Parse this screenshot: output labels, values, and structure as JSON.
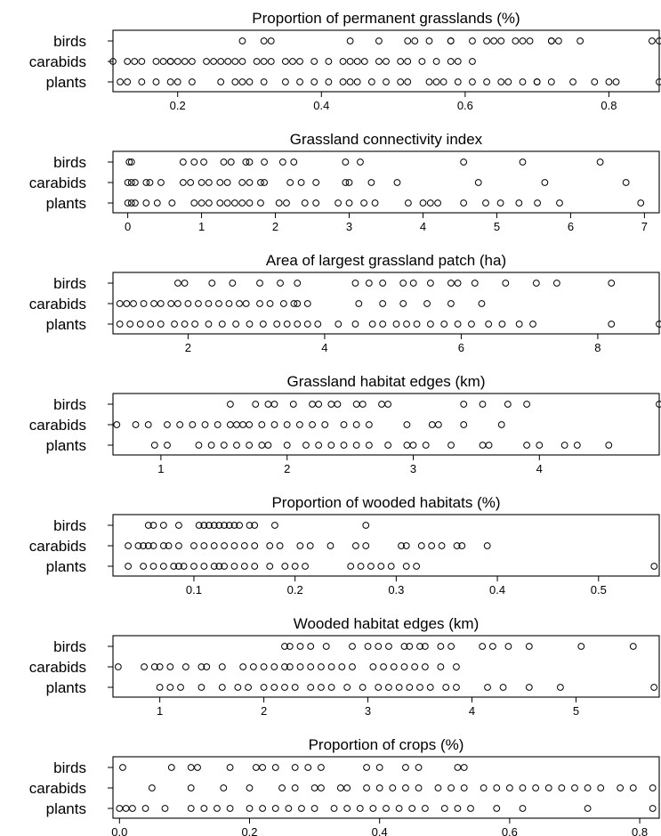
{
  "chart_data": [
    {
      "type": "scatter",
      "title": "Proportion of permanent grasslands (%)",
      "groups": [
        "birds",
        "carabids",
        "plants"
      ],
      "xlim": [
        0.11,
        0.87
      ],
      "ticks": [
        0.2,
        0.4,
        0.6,
        0.8
      ],
      "tick_labels": [
        "0.2",
        "0.4",
        "0.6",
        "0.8"
      ],
      "series": [
        {
          "name": "birds",
          "values": [
            0.29,
            0.32,
            0.33,
            0.44,
            0.48,
            0.52,
            0.53,
            0.55,
            0.58,
            0.58,
            0.61,
            0.63,
            0.64,
            0.65,
            0.67,
            0.68,
            0.69,
            0.72,
            0.72,
            0.73,
            0.76,
            0.86,
            0.87
          ]
        },
        {
          "name": "carabids",
          "values": [
            0.11,
            0.13,
            0.14,
            0.15,
            0.17,
            0.18,
            0.19,
            0.19,
            0.2,
            0.21,
            0.22,
            0.24,
            0.25,
            0.26,
            0.27,
            0.28,
            0.29,
            0.31,
            0.32,
            0.33,
            0.35,
            0.36,
            0.37,
            0.39,
            0.41,
            0.43,
            0.44,
            0.45,
            0.46,
            0.48,
            0.49,
            0.51,
            0.52,
            0.54,
            0.56,
            0.58,
            0.59,
            0.61
          ]
        },
        {
          "name": "plants",
          "values": [
            0.12,
            0.13,
            0.15,
            0.17,
            0.19,
            0.2,
            0.22,
            0.26,
            0.28,
            0.29,
            0.3,
            0.32,
            0.35,
            0.37,
            0.39,
            0.41,
            0.43,
            0.44,
            0.45,
            0.47,
            0.49,
            0.51,
            0.52,
            0.55,
            0.56,
            0.57,
            0.59,
            0.61,
            0.63,
            0.65,
            0.66,
            0.68,
            0.7,
            0.7,
            0.72,
            0.75,
            0.78,
            0.8,
            0.81,
            0.87
          ]
        }
      ]
    },
    {
      "type": "scatter",
      "title": "Grassland connectivity index",
      "groups": [
        "birds",
        "carabids",
        "plants"
      ],
      "xlim": [
        -0.2,
        7.2
      ],
      "ticks": [
        0,
        1,
        2,
        3,
        4,
        5,
        6,
        7
      ],
      "tick_labels": [
        "0",
        "1",
        "2",
        "3",
        "4",
        "5",
        "6",
        "7"
      ],
      "series": [
        {
          "name": "birds",
          "values": [
            0.02,
            0.05,
            0.75,
            0.9,
            1.03,
            1.3,
            1.4,
            1.6,
            1.65,
            1.85,
            2.1,
            2.25,
            2.95,
            3.15,
            4.55,
            5.35,
            6.4
          ]
        },
        {
          "name": "carabids",
          "values": [
            0.0,
            0.05,
            0.1,
            0.25,
            0.3,
            0.45,
            0.75,
            0.85,
            1.0,
            1.1,
            1.25,
            1.35,
            1.55,
            1.65,
            1.8,
            1.85,
            2.2,
            2.35,
            2.55,
            2.95,
            3.0,
            3.3,
            3.65,
            4.75,
            5.65,
            6.75
          ]
        },
        {
          "name": "plants",
          "values": [
            0.0,
            0.05,
            0.1,
            0.25,
            0.4,
            0.6,
            0.9,
            1.0,
            1.1,
            1.25,
            1.35,
            1.45,
            1.55,
            1.65,
            1.8,
            2.05,
            2.15,
            2.4,
            2.55,
            2.85,
            3.0,
            3.2,
            3.35,
            3.8,
            4.0,
            4.1,
            4.2,
            4.55,
            4.85,
            5.05,
            5.3,
            5.55,
            5.85,
            6.95
          ]
        }
      ]
    },
    {
      "type": "scatter",
      "title": "Area of largest grassland patch (ha)",
      "groups": [
        "birds",
        "carabids",
        "plants"
      ],
      "xlim": [
        0.9,
        8.9
      ],
      "ticks": [
        2,
        4,
        6,
        8
      ],
      "tick_labels": [
        "2",
        "4",
        "6",
        "8"
      ],
      "series": [
        {
          "name": "birds",
          "values": [
            1.85,
            1.95,
            2.35,
            2.65,
            3.05,
            3.35,
            3.6,
            4.45,
            4.65,
            4.85,
            5.15,
            5.3,
            5.55,
            5.85,
            5.95,
            6.2,
            6.65,
            7.1,
            7.4,
            8.2
          ]
        },
        {
          "name": "carabids",
          "values": [
            1.0,
            1.1,
            1.2,
            1.35,
            1.5,
            1.6,
            1.75,
            1.85,
            2.0,
            2.15,
            2.3,
            2.45,
            2.6,
            2.75,
            2.85,
            3.05,
            3.2,
            3.4,
            3.55,
            3.6,
            3.75,
            4.5,
            4.85,
            5.15,
            5.5,
            5.85,
            6.3
          ]
        },
        {
          "name": "plants",
          "values": [
            1.0,
            1.15,
            1.3,
            1.45,
            1.6,
            1.8,
            1.95,
            2.1,
            2.3,
            2.5,
            2.7,
            2.9,
            3.1,
            3.3,
            3.45,
            3.6,
            3.75,
            3.9,
            4.2,
            4.45,
            4.7,
            4.85,
            5.05,
            5.2,
            5.35,
            5.55,
            5.75,
            5.95,
            6.15,
            6.4,
            6.6,
            6.85,
            7.05,
            8.2,
            8.9
          ]
        }
      ]
    },
    {
      "type": "scatter",
      "title": "Grassland habitat edges (km)",
      "groups": [
        "birds",
        "carabids",
        "plants"
      ],
      "xlim": [
        0.62,
        4.95
      ],
      "ticks": [
        1,
        2,
        3,
        4,
        5
      ],
      "tick_labels": [
        "1",
        "2",
        "3",
        "4",
        "5"
      ],
      "series": [
        {
          "name": "birds",
          "values": [
            1.55,
            1.75,
            1.85,
            1.9,
            2.05,
            2.2,
            2.25,
            2.35,
            2.4,
            2.55,
            2.6,
            2.75,
            2.8,
            3.4,
            3.55,
            3.75,
            3.9,
            4.95
          ]
        },
        {
          "name": "carabids",
          "values": [
            0.65,
            0.8,
            0.9,
            1.05,
            1.15,
            1.25,
            1.35,
            1.45,
            1.55,
            1.6,
            1.65,
            1.7,
            1.8,
            1.9,
            2.0,
            2.1,
            2.2,
            2.3,
            2.45,
            2.55,
            2.65,
            2.95,
            3.15,
            3.2,
            3.4,
            3.7
          ]
        },
        {
          "name": "plants",
          "values": [
            0.95,
            1.05,
            1.3,
            1.4,
            1.5,
            1.6,
            1.7,
            1.8,
            1.85,
            2.0,
            2.15,
            2.25,
            2.35,
            2.45,
            2.55,
            2.65,
            2.8,
            2.95,
            3.0,
            3.1,
            3.3,
            3.55,
            3.6,
            3.9,
            4.0,
            4.2,
            4.3,
            4.55
          ]
        }
      ]
    },
    {
      "type": "scatter",
      "title": "Proportion of wooded habitats (%)",
      "groups": [
        "birds",
        "carabids",
        "plants"
      ],
      "xlim": [
        0.02,
        0.56
      ],
      "ticks": [
        0.1,
        0.2,
        0.3,
        0.4,
        0.5
      ],
      "tick_labels": [
        "0.1",
        "0.2",
        "0.3",
        "0.4",
        "0.5"
      ],
      "series": [
        {
          "name": "birds",
          "values": [
            0.055,
            0.06,
            0.07,
            0.085,
            0.105,
            0.11,
            0.115,
            0.12,
            0.125,
            0.13,
            0.135,
            0.14,
            0.145,
            0.155,
            0.16,
            0.18,
            0.27
          ]
        },
        {
          "name": "carabids",
          "values": [
            0.035,
            0.045,
            0.05,
            0.055,
            0.06,
            0.07,
            0.075,
            0.085,
            0.1,
            0.11,
            0.12,
            0.13,
            0.14,
            0.15,
            0.16,
            0.175,
            0.185,
            0.205,
            0.215,
            0.235,
            0.26,
            0.27,
            0.305,
            0.31,
            0.325,
            0.335,
            0.345,
            0.36,
            0.365,
            0.39
          ]
        },
        {
          "name": "plants",
          "values": [
            0.035,
            0.05,
            0.06,
            0.07,
            0.08,
            0.085,
            0.09,
            0.1,
            0.11,
            0.12,
            0.125,
            0.13,
            0.14,
            0.15,
            0.16,
            0.175,
            0.19,
            0.2,
            0.21,
            0.255,
            0.265,
            0.275,
            0.285,
            0.295,
            0.31,
            0.32,
            0.555
          ]
        }
      ]
    },
    {
      "type": "scatter",
      "title": "Wooded habitat edges (km)",
      "groups": [
        "birds",
        "carabids",
        "plants"
      ],
      "xlim": [
        0.55,
        5.8
      ],
      "ticks": [
        1,
        2,
        3,
        4,
        5
      ],
      "tick_labels": [
        "1",
        "2",
        "3",
        "4",
        "5"
      ],
      "series": [
        {
          "name": "birds",
          "values": [
            2.2,
            2.25,
            2.35,
            2.45,
            2.6,
            2.85,
            3.0,
            3.1,
            3.2,
            3.35,
            3.4,
            3.5,
            3.55,
            3.7,
            3.8,
            4.1,
            4.2,
            4.35,
            4.55,
            5.05,
            5.55
          ]
        },
        {
          "name": "carabids",
          "values": [
            0.6,
            0.85,
            0.95,
            1.0,
            1.1,
            1.25,
            1.4,
            1.45,
            1.6,
            1.8,
            1.9,
            2.0,
            2.1,
            2.2,
            2.25,
            2.35,
            2.45,
            2.55,
            2.65,
            2.75,
            2.85,
            3.05,
            3.15,
            3.25,
            3.35,
            3.45,
            3.55,
            3.7,
            3.85
          ]
        },
        {
          "name": "plants",
          "values": [
            1.0,
            1.1,
            1.2,
            1.4,
            1.6,
            1.75,
            1.85,
            2.0,
            2.1,
            2.2,
            2.3,
            2.45,
            2.55,
            2.65,
            2.8,
            2.95,
            3.1,
            3.2,
            3.3,
            3.4,
            3.5,
            3.6,
            3.75,
            3.85,
            4.15,
            4.3,
            4.55,
            4.85,
            5.75
          ]
        }
      ]
    },
    {
      "type": "scatter",
      "title": "Proportion of crops (%)",
      "groups": [
        "birds",
        "carabids",
        "plants"
      ],
      "xlim": [
        -0.01,
        0.83
      ],
      "ticks": [
        0.0,
        0.2,
        0.4,
        0.6,
        0.8
      ],
      "tick_labels": [
        "0.0",
        "0.2",
        "0.4",
        "0.6",
        "0.8"
      ],
      "series": [
        {
          "name": "birds",
          "values": [
            0.005,
            0.08,
            0.11,
            0.12,
            0.17,
            0.21,
            0.22,
            0.24,
            0.27,
            0.29,
            0.31,
            0.38,
            0.4,
            0.44,
            0.46,
            0.52,
            0.53
          ]
        },
        {
          "name": "carabids",
          "values": [
            0.05,
            0.11,
            0.16,
            0.2,
            0.25,
            0.27,
            0.3,
            0.31,
            0.34,
            0.35,
            0.38,
            0.4,
            0.42,
            0.44,
            0.46,
            0.49,
            0.51,
            0.53,
            0.56,
            0.58,
            0.6,
            0.62,
            0.64,
            0.66,
            0.68,
            0.7,
            0.72,
            0.74,
            0.77,
            0.79,
            0.82
          ]
        },
        {
          "name": "plants",
          "values": [
            0.0,
            0.01,
            0.02,
            0.04,
            0.07,
            0.11,
            0.13,
            0.15,
            0.17,
            0.2,
            0.22,
            0.24,
            0.26,
            0.28,
            0.3,
            0.33,
            0.35,
            0.37,
            0.39,
            0.41,
            0.43,
            0.45,
            0.47,
            0.5,
            0.52,
            0.54,
            0.58,
            0.62,
            0.72,
            0.82
          ]
        }
      ]
    }
  ]
}
